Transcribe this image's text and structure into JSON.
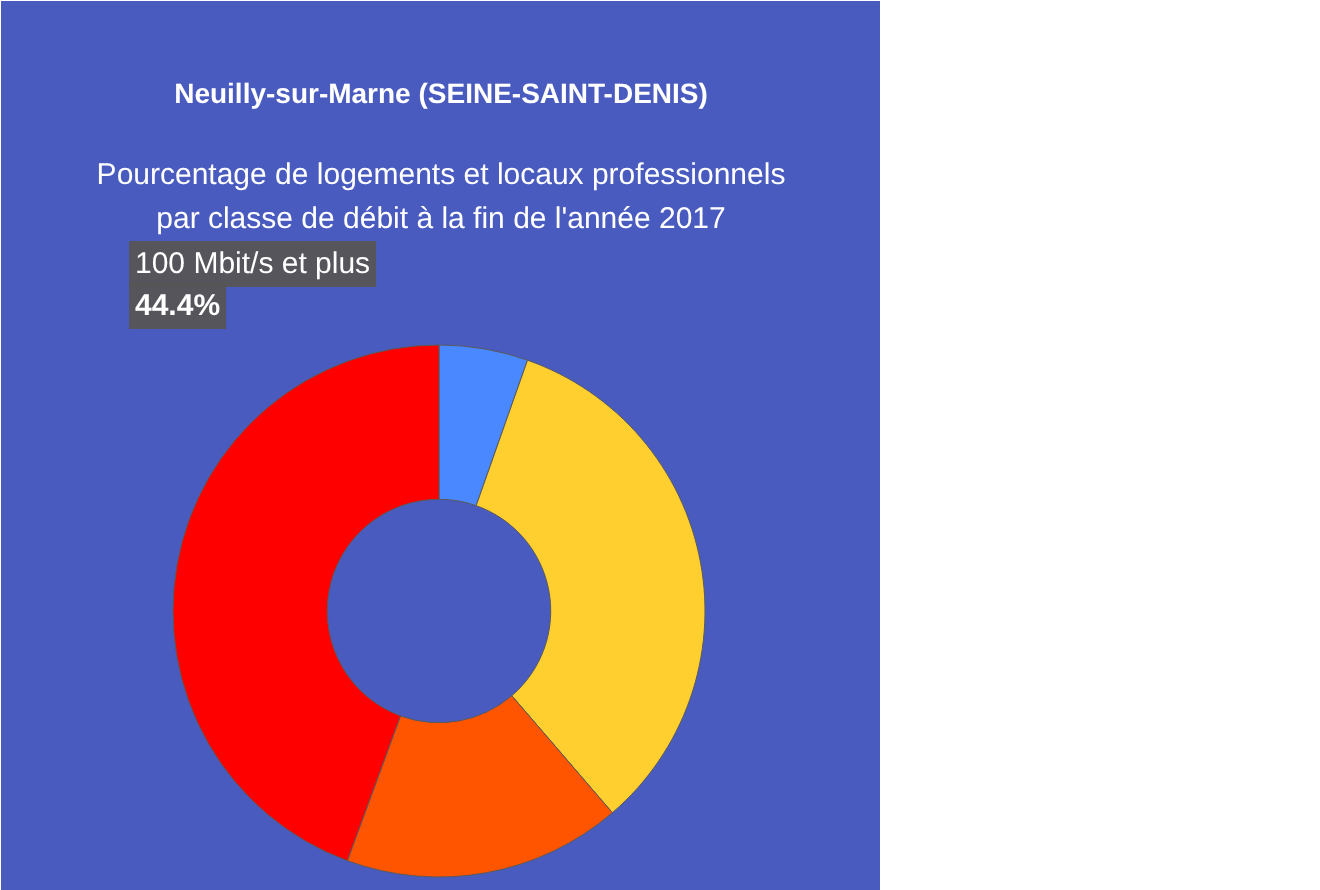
{
  "chart_data": {
    "type": "donut",
    "title": "Neuilly-sur-Marne (SEINE-SAINT-DENIS)",
    "subtitle": "Pourcentage de logements et locaux professionnels par classe de débit à la fin de l'année 2017",
    "categories": [
      null,
      null,
      null,
      "100 Mbit/s et plus"
    ],
    "values": [
      5.4,
      33.3,
      16.9,
      44.4
    ],
    "colors": [
      "#4a88ff",
      "#ffcf30",
      "#ff5500",
      "#ff0000"
    ],
    "value_labels": [
      null,
      null,
      null,
      "44.4%"
    ]
  }
}
